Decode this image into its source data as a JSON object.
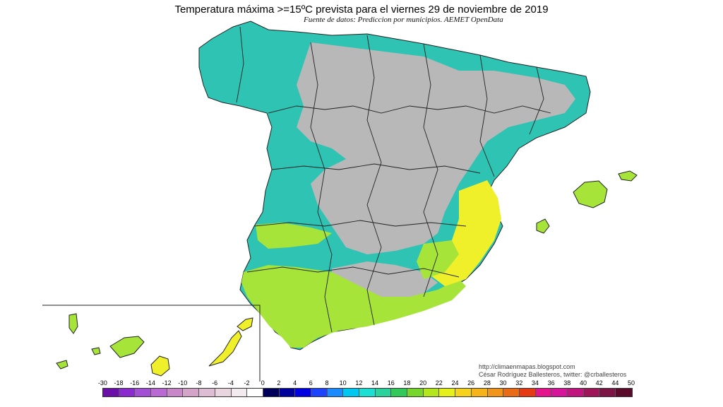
{
  "title": "Temperatura máxima >=15ºC prevista para el viernes 29 de noviembre de 2019",
  "subtitle": "Fuente de datos: Prediccion por municipios. AEMET OpenData",
  "credits": {
    "line1": "http://climaenmapas.blogspot.com",
    "line2": "César Rodríguez Ballesteros, twitter: @crballesteros"
  },
  "legend": {
    "ticks": [
      "-30",
      "-18",
      "-16",
      "-14",
      "-12",
      "-10",
      "-8",
      "-6",
      "-4",
      "-2",
      "0",
      "2",
      "4",
      "6",
      "8",
      "10",
      "12",
      "14",
      "16",
      "18",
      "20",
      "22",
      "24",
      "26",
      "28",
      "30",
      "32",
      "34",
      "36",
      "38",
      "40",
      "42",
      "44",
      "50"
    ],
    "colors": [
      "#6a0fa8",
      "#8a2bd0",
      "#a24fd6",
      "#b86ad2",
      "#c887c8",
      "#d3a3c8",
      "#ddbdd3",
      "#e8d5dd",
      "#f2eaee",
      "#ffffff",
      "#00005a",
      "#00009b",
      "#0000e0",
      "#1c44ff",
      "#1a8cff",
      "#00c8f0",
      "#19e0d2",
      "#2ad39c",
      "#33c85a",
      "#77d62a",
      "#b4e61c",
      "#e6f01a",
      "#f4d31a",
      "#f4b41a",
      "#f0941a",
      "#eb6a14",
      "#e63a14",
      "#e6148c",
      "#d6149c",
      "#c0147f",
      "#a0145a",
      "#7d1446",
      "#5a0a2a"
    ]
  },
  "map_colors": {
    "gray": "#b8b8b8",
    "teal": "#2fc3b4",
    "dark_teal": "#1ea79a",
    "green_yellow": "#a7e43a",
    "yellow": "#f0f02a",
    "borders": "#222222"
  }
}
